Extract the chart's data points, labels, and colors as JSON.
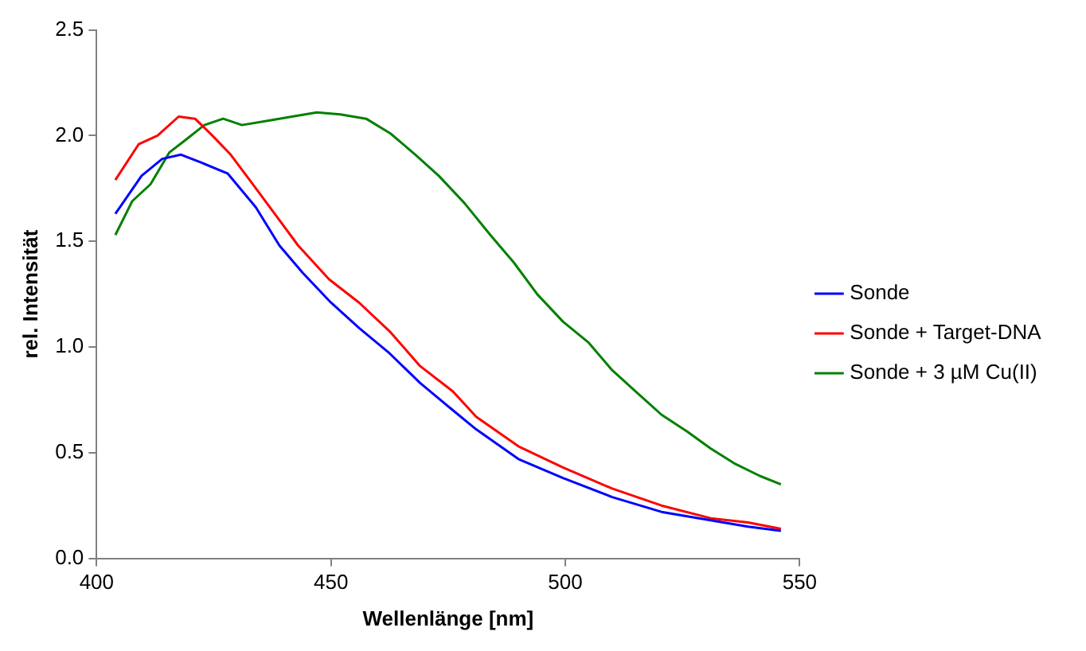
{
  "chart_data": {
    "type": "line",
    "xlabel": "Wellenlänge [nm]",
    "ylabel": "rel. Intensität",
    "xlim": [
      400,
      550
    ],
    "xticks": [
      400,
      450,
      500,
      550
    ],
    "ylim": [
      0,
      2.5
    ],
    "yticks": [
      {
        "value": 0,
        "label": "0.0"
      },
      {
        "value": 0.5,
        "label": "0.5"
      },
      {
        "value": 1,
        "label": "1.0"
      },
      {
        "value": 1.5,
        "label": "1.5"
      },
      {
        "value": 2,
        "label": "2.0"
      },
      {
        "value": 2.5,
        "label": "2.5"
      }
    ],
    "grid": false,
    "legend": "right",
    "marker": "none",
    "line_style": "solid",
    "series": [
      {
        "name": "Sonde",
        "color": "#0000ff",
        "x": [
          404,
          409.6,
          414,
          418,
          422.6,
          428,
          434,
          439,
          444,
          450,
          456,
          462.5,
          469,
          475.5,
          481,
          490,
          499.5,
          510,
          520.5,
          531,
          539,
          546
        ],
        "values": [
          1.63,
          1.81,
          1.89,
          1.91,
          1.87,
          1.82,
          1.66,
          1.48,
          1.35,
          1.21,
          1.09,
          0.97,
          0.83,
          0.71,
          0.61,
          0.47,
          0.38,
          0.29,
          0.22,
          0.18,
          0.15,
          0.13
        ]
      },
      {
        "name": "Sonde + Target-DNA",
        "color": "#ff0000",
        "x": [
          404,
          409,
          413,
          417.5,
          421,
          424.7,
          428.6,
          433,
          438,
          443,
          449.6,
          456,
          462.7,
          469,
          476,
          481,
          490,
          499.5,
          510,
          520.5,
          531,
          539,
          546
        ],
        "values": [
          1.79,
          1.96,
          2.0,
          2.09,
          2.08,
          2.0,
          1.91,
          1.78,
          1.63,
          1.48,
          1.32,
          1.21,
          1.07,
          0.91,
          0.79,
          0.67,
          0.53,
          0.43,
          0.33,
          0.25,
          0.19,
          0.17,
          0.14
        ]
      },
      {
        "name": "Sonde + 3 µM Cu(II)",
        "color": "#008000",
        "x": [
          404,
          407.6,
          411.5,
          415.5,
          419,
          423,
          427,
          431,
          436.5,
          441.7,
          447,
          452,
          457.5,
          462.7,
          468,
          473,
          478.5,
          484,
          489,
          494,
          499.5,
          505,
          510,
          515,
          520.5,
          526,
          531,
          536,
          541.5,
          546
        ],
        "values": [
          1.53,
          1.69,
          1.77,
          1.92,
          1.98,
          2.05,
          2.08,
          2.05,
          2.07,
          2.09,
          2.11,
          2.1,
          2.08,
          2.01,
          1.91,
          1.81,
          1.68,
          1.53,
          1.4,
          1.25,
          1.12,
          1.02,
          0.89,
          0.79,
          0.68,
          0.6,
          0.52,
          0.45,
          0.39,
          0.35
        ]
      }
    ]
  }
}
